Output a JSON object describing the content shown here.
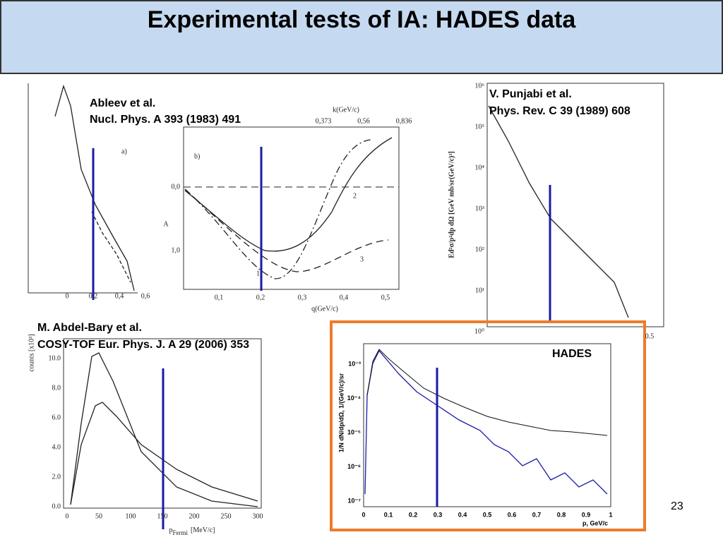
{
  "title": "Experimental tests of IA: HADES data",
  "page_number": "23",
  "ableev": {
    "author": "Ableev et al.",
    "reference": "Nucl. Phys. A 393 (1983) 491",
    "panel_a": "a)",
    "panel_b": "b)",
    "a_xticks": [
      "0",
      "0,2",
      "0,4",
      "0,6"
    ],
    "b_xticks": [
      "0,1",
      "0,2",
      "0,3",
      "0,4",
      "0,5"
    ],
    "b_xlabel": "q(GeV/c)",
    "b_yticks": [
      "0,0",
      "1,0"
    ],
    "b_ylabel": "A",
    "top_label": "k(GeV/c)",
    "top_ticks": [
      "0,373",
      "0,56",
      "0,836"
    ],
    "curve_labels": [
      "1",
      "2",
      "3"
    ]
  },
  "punjabi": {
    "author": "V. Punjabi et al.",
    "reference": "Phys. Rev. C 39 (1989) 608",
    "ylabel": "Ed²σ/p²dp dΩ [GeV mb/sr(GeV/c)³]",
    "yticks": [
      "10⁶",
      "10⁵",
      "10⁴",
      "10³",
      "10²",
      "10¹",
      "10⁰"
    ],
    "xtick": "0.5"
  },
  "abdel_bary": {
    "author": "M. Abdel-Bary et al.",
    "reference": "COSY-TOF Eur. Phys. J. A 29 (2006) 353",
    "ylabel": "counts [x10³]",
    "yticks": [
      "0.0",
      "2.0",
      "4.0",
      "6.0",
      "8.0",
      "10.0"
    ],
    "xticks": [
      "0",
      "50",
      "100",
      "150",
      "200",
      "250",
      "300"
    ],
    "xlabel": "p",
    "xlabel_sub": "Fermi",
    "xlabel_unit": "[MeV/c]"
  },
  "hades": {
    "label": "HADES",
    "yticks": [
      "10⁻⁷",
      "10⁻⁶",
      "10⁻⁵",
      "10⁻⁴",
      "10⁻³"
    ],
    "xticks": [
      "0",
      "0.1",
      "0.2",
      "0.3",
      "0.4",
      "0.5",
      "0.6",
      "0.7",
      "0.8",
      "0.9",
      "1"
    ],
    "xlabel": "p, GeV/c",
    "ylabel": "1/N dN/dp/dΩ, 1/(GeV/c)/sr"
  }
}
